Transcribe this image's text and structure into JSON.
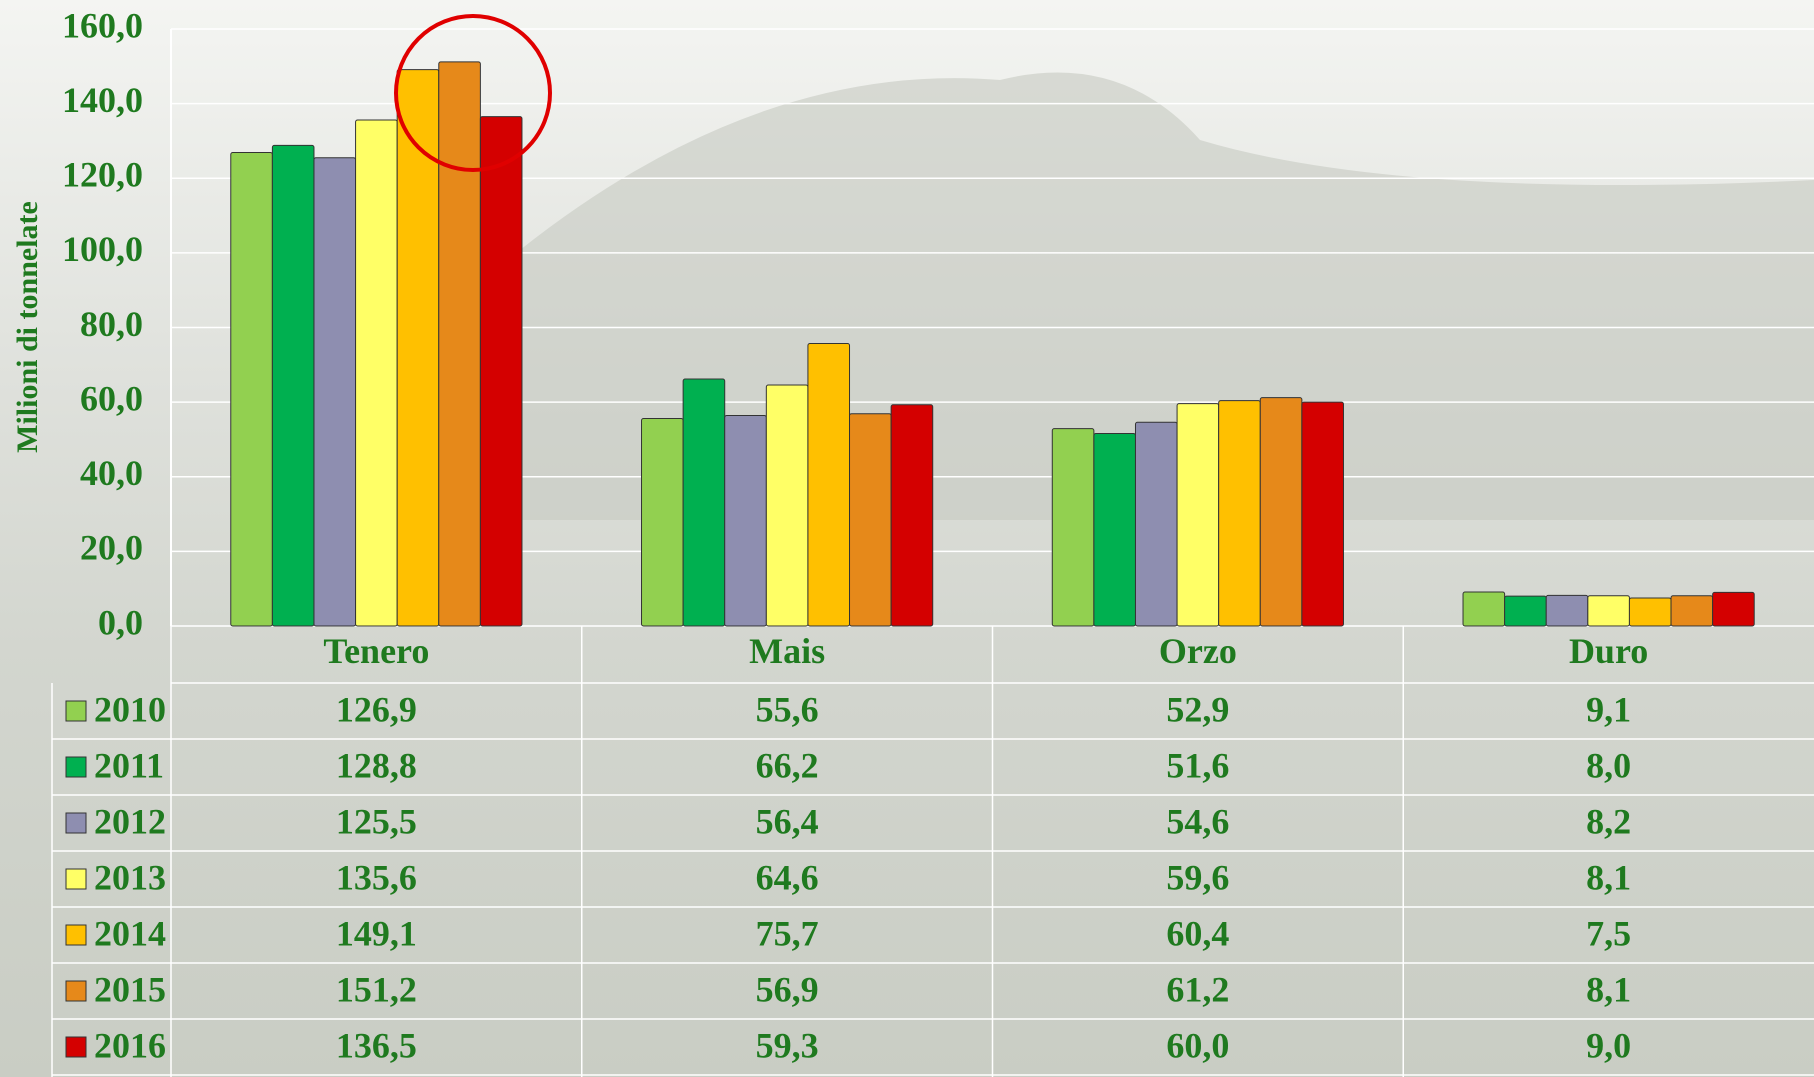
{
  "chart_data": {
    "type": "bar",
    "y_label": "Milioni di tonnelate",
    "categories": [
      "Tenero",
      "Mais",
      "Orzo",
      "Duro"
    ],
    "series": [
      {
        "name": "2010",
        "color": "#92d050",
        "values": [
          126.9,
          55.6,
          52.9,
          9.1
        ],
        "value_labels": [
          "126,9",
          "55,6",
          "52,9",
          "9,1"
        ]
      },
      {
        "name": "2011",
        "color": "#00b050",
        "values": [
          128.8,
          66.2,
          51.6,
          8.0
        ],
        "value_labels": [
          "128,8",
          "66,2",
          "51,6",
          "8,0"
        ]
      },
      {
        "name": "2012",
        "color": "#8e8eb0",
        "values": [
          125.5,
          56.4,
          54.6,
          8.2
        ],
        "value_labels": [
          "125,5",
          "56,4",
          "54,6",
          "8,2"
        ]
      },
      {
        "name": "2013",
        "color": "#ffff66",
        "values": [
          135.6,
          64.6,
          59.6,
          8.1
        ],
        "value_labels": [
          "135,6",
          "64,6",
          "59,6",
          "8,1"
        ]
      },
      {
        "name": "2014",
        "color": "#ffc000",
        "values": [
          149.1,
          75.7,
          60.4,
          7.5
        ],
        "value_labels": [
          "149,1",
          "75,7",
          "60,4",
          "7,5"
        ]
      },
      {
        "name": "2015",
        "color": "#e6891a",
        "values": [
          151.2,
          56.9,
          61.2,
          8.1
        ],
        "value_labels": [
          "151,2",
          "56,9",
          "61,2",
          "8,1"
        ]
      },
      {
        "name": "2016",
        "color": "#d40000",
        "values": [
          136.5,
          59.3,
          60.0,
          9.0
        ],
        "value_labels": [
          "136,5",
          "59,3",
          "60,0",
          "9,0"
        ]
      }
    ],
    "ylim": [
      0,
      160
    ],
    "yticks": [
      {
        "value": 0,
        "label": "0,0"
      },
      {
        "value": 20,
        "label": "20,0"
      },
      {
        "value": 40,
        "label": "40,0"
      },
      {
        "value": 60,
        "label": "60,0"
      },
      {
        "value": 80,
        "label": "80,0"
      },
      {
        "value": 100,
        "label": "100,0"
      },
      {
        "value": 120,
        "label": "120,0"
      },
      {
        "value": 140,
        "label": "140,0"
      },
      {
        "value": 160,
        "label": "160,0"
      }
    ],
    "grid": true
  }
}
